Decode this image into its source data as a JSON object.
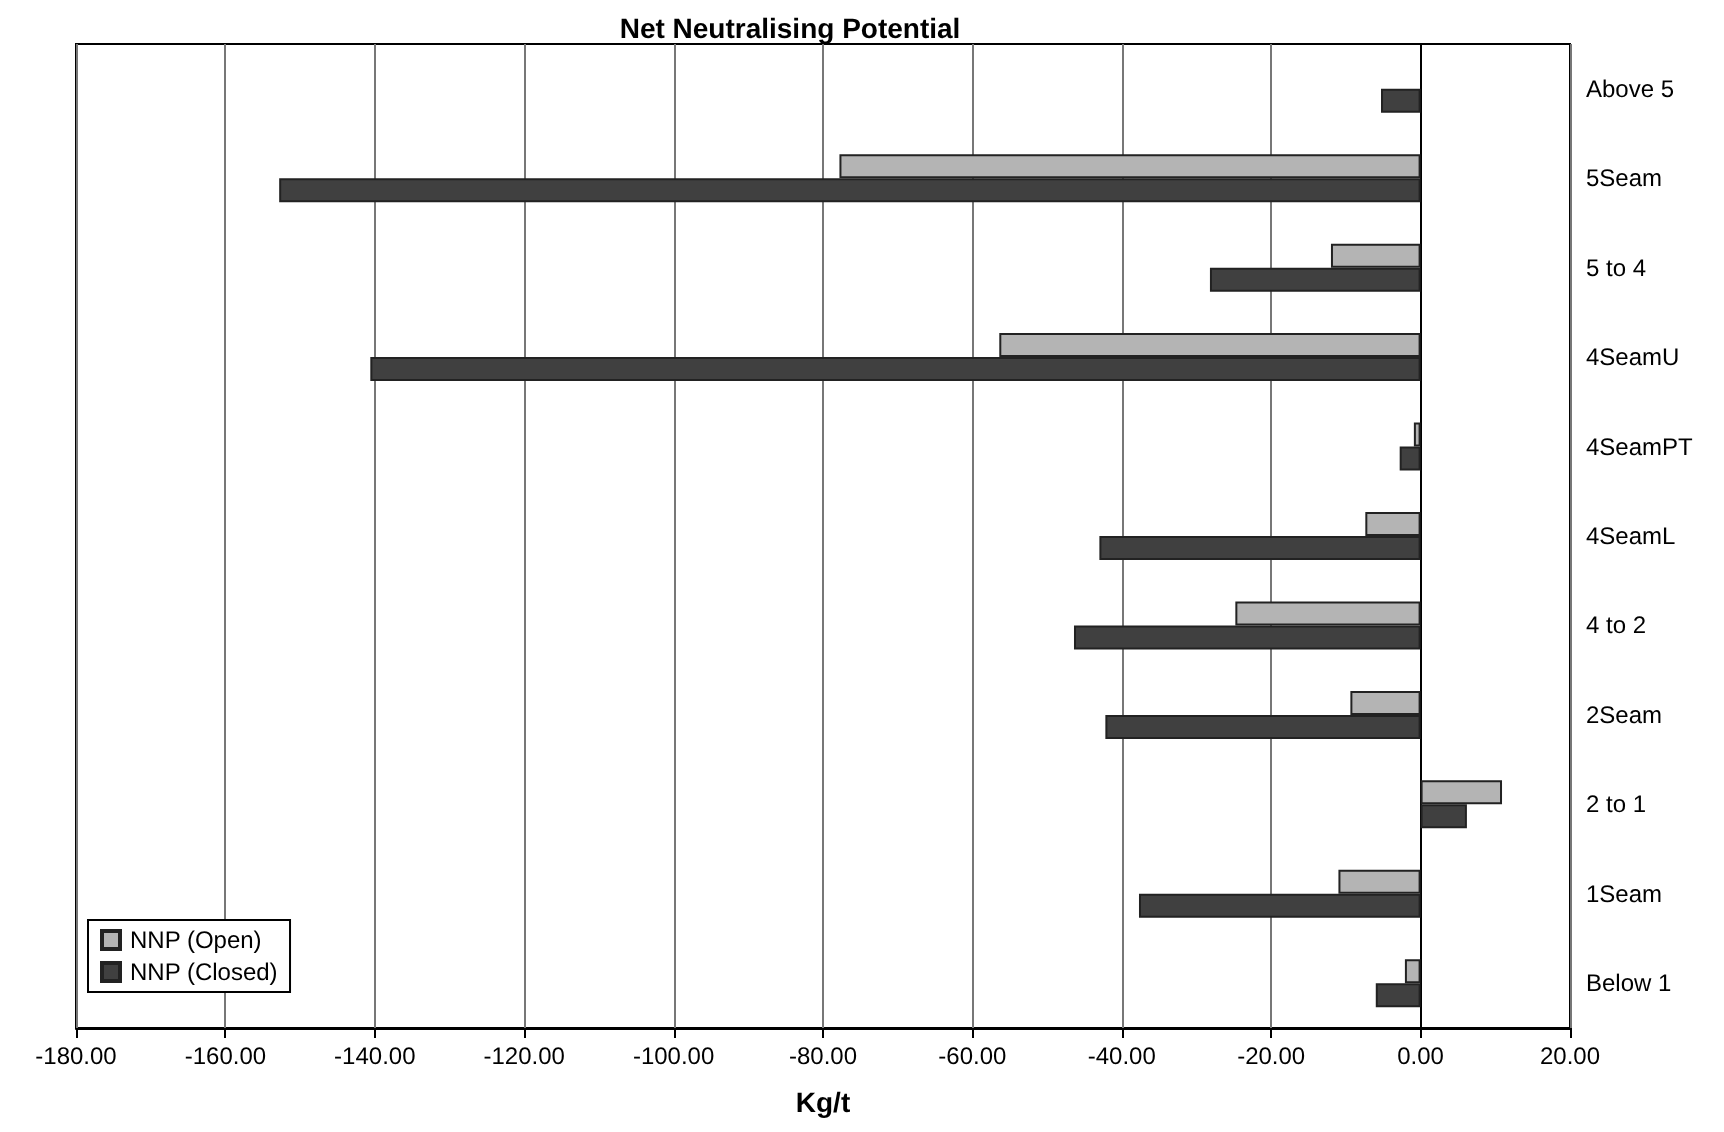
{
  "chart_data": {
    "type": "bar",
    "orientation": "horizontal",
    "title": "Net Neutralising Potential",
    "xlabel": "Kg/t",
    "categories": [
      "Above 5",
      "5Seam",
      "5 to 4",
      "4SeamU",
      "4SeamPT",
      "4SeamL",
      "4 to 2",
      "2Seam",
      "2 to 1",
      "1Seam",
      "Below 1"
    ],
    "series": [
      {
        "name": "NNP (Open)",
        "color": "#b4b4b4",
        "values": [
          null,
          -77.8,
          -12.0,
          -56.4,
          -0.9,
          -7.4,
          -24.8,
          -9.4,
          10.9,
          -11.0,
          -2.1
        ]
      },
      {
        "name": "NNP (Closed)",
        "color": "#404040",
        "values": [
          -5.3,
          -152.8,
          -28.2,
          -140.6,
          -2.8,
          -43.0,
          -46.4,
          -42.2,
          6.2,
          -37.7,
          -6.0
        ]
      }
    ],
    "xlim": [
      -180,
      20
    ],
    "xticks": [
      {
        "value": -180,
        "label": "-180.00"
      },
      {
        "value": -160,
        "label": "-160.00"
      },
      {
        "value": -140,
        "label": "-140.00"
      },
      {
        "value": -120,
        "label": "-120.00"
      },
      {
        "value": -100,
        "label": "-100.00"
      },
      {
        "value": -80,
        "label": "-80.00"
      },
      {
        "value": -60,
        "label": "-60.00"
      },
      {
        "value": -40,
        "label": "-40.00"
      },
      {
        "value": -20,
        "label": "-20.00"
      },
      {
        "value": 0,
        "label": "0.00"
      },
      {
        "value": 20,
        "label": "20.00"
      }
    ],
    "grid": "x",
    "legend": "bottom left"
  }
}
